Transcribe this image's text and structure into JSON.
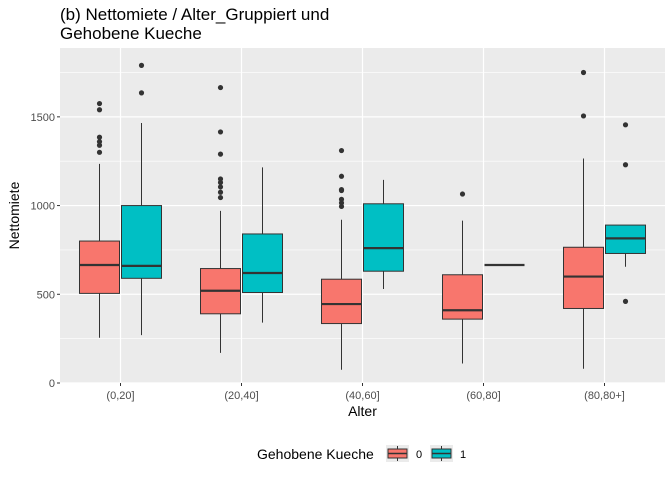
{
  "chart_data": {
    "type": "box",
    "title": "(b) Nettomiete / Alter_Gruppiert und Gehobene Kueche",
    "title_lines": [
      "(b) Nettomiete / Alter_Gruppiert und",
      "Gehobene Kueche"
    ],
    "xlabel": "Alter",
    "ylabel": "Nettomiete",
    "categories": [
      "(0,20]",
      "(20,40]",
      "(40,60]",
      "(60,80]",
      "(80,80+]"
    ],
    "ylim": [
      0,
      1800
    ],
    "yticks": [
      0,
      500,
      1000,
      1500
    ],
    "grid": true,
    "legend": {
      "title": "Gehobene Kueche",
      "position": "bottom",
      "entries": [
        {
          "label": "0",
          "color": "#F8766D"
        },
        {
          "label": "1",
          "color": "#00BFC4"
        }
      ]
    },
    "series": [
      {
        "name": "0",
        "color": "#F8766D",
        "boxes": [
          {
            "category": "(0,20]",
            "lower_whisker": 255,
            "q1": 505,
            "median": 665,
            "q3": 800,
            "upper_whisker": 1235,
            "outliers": [
              1300,
              1340,
              1360,
              1385,
              1540,
              1575
            ]
          },
          {
            "category": "(20,40]",
            "lower_whisker": 170,
            "q1": 390,
            "median": 520,
            "q3": 645,
            "upper_whisker": 970,
            "outliers": [
              1045,
              1075,
              1105,
              1130,
              1150,
              1290,
              1415,
              1665
            ]
          },
          {
            "category": "(40,60]",
            "lower_whisker": 75,
            "q1": 335,
            "median": 445,
            "q3": 585,
            "upper_whisker": 920,
            "outliers": [
              995,
              1015,
              1035,
              1085,
              1090,
              1165,
              1310
            ]
          },
          {
            "category": "(60,80]",
            "lower_whisker": 110,
            "q1": 360,
            "median": 410,
            "q3": 610,
            "upper_whisker": 915,
            "outliers": [
              1065
            ]
          },
          {
            "category": "(80,80+]",
            "lower_whisker": 80,
            "q1": 420,
            "median": 600,
            "q3": 765,
            "upper_whisker": 1265,
            "outliers": [
              1505,
              1750
            ]
          }
        ]
      },
      {
        "name": "1",
        "color": "#00BFC4",
        "boxes": [
          {
            "category": "(0,20]",
            "lower_whisker": 270,
            "q1": 590,
            "median": 660,
            "q3": 1000,
            "upper_whisker": 1465,
            "outliers": [
              1635,
              1790
            ]
          },
          {
            "category": "(20,40]",
            "lower_whisker": 340,
            "q1": 510,
            "median": 620,
            "q3": 840,
            "upper_whisker": 1215,
            "outliers": []
          },
          {
            "category": "(40,60]",
            "lower_whisker": 530,
            "q1": 630,
            "median": 760,
            "q3": 1010,
            "upper_whisker": 1145,
            "outliers": []
          },
          {
            "category": "(60,80]",
            "lower_whisker": 665,
            "q1": 665,
            "median": 665,
            "q3": 665,
            "upper_whisker": 665,
            "outliers": []
          },
          {
            "category": "(80,80+]",
            "lower_whisker": 655,
            "q1": 730,
            "median": 815,
            "q3": 890,
            "upper_whisker": 890,
            "outliers": [
              460,
              1230,
              1455
            ]
          }
        ]
      }
    ]
  }
}
